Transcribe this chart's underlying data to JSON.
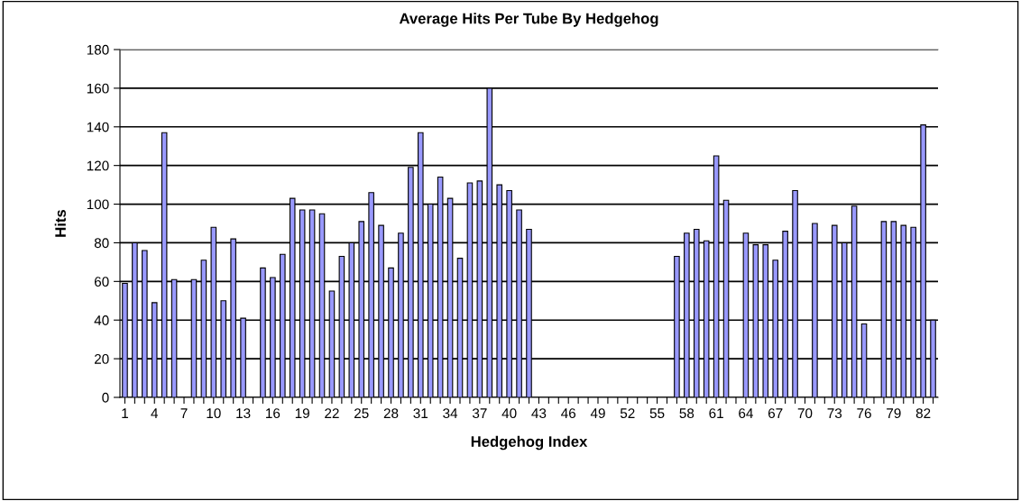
{
  "chart_data": {
    "type": "bar",
    "title": "Average Hits Per Tube By Hedgehog",
    "xlabel": "Hedgehog Index",
    "ylabel": "Hits",
    "categories": [
      "1",
      null,
      null,
      "4",
      null,
      null,
      "7",
      null,
      null,
      "10",
      null,
      null,
      "13",
      null,
      null,
      "16",
      null,
      null,
      "19",
      null,
      null,
      "22",
      null,
      null,
      "25",
      null,
      null,
      "28",
      null,
      null,
      "31",
      null,
      null,
      "34",
      null,
      null,
      "37",
      null,
      null,
      "40",
      null,
      null,
      "43",
      null,
      null,
      "46",
      null,
      null,
      "49",
      null,
      null,
      "52",
      null,
      null,
      "55",
      null,
      null,
      "58",
      null,
      null,
      "61",
      null,
      null,
      "64",
      null,
      null,
      "67",
      null,
      null,
      "70",
      null,
      null,
      "73",
      null,
      null,
      "76",
      null,
      null,
      "79",
      null,
      null,
      "82",
      null
    ],
    "series": [
      {
        "color": "#9999ff",
        "values": [
          59,
          80,
          76,
          49,
          137,
          61,
          null,
          61,
          71,
          88,
          50,
          82,
          41,
          null,
          67,
          62,
          74,
          103,
          97,
          97,
          95,
          55,
          73,
          80,
          91,
          106,
          89,
          67,
          85,
          119,
          137,
          100,
          114,
          103,
          72,
          111,
          112,
          160,
          110,
          107,
          97,
          87,
          null,
          null,
          null,
          null,
          null,
          null,
          null,
          null,
          null,
          null,
          null,
          null,
          null,
          null,
          73,
          85,
          87,
          81,
          125,
          102,
          null,
          85,
          79,
          79,
          71,
          86,
          107,
          null,
          90,
          null,
          89,
          80,
          99,
          38,
          null,
          91,
          91,
          89,
          88,
          141,
          40
        ]
      }
    ],
    "ylim": [
      0,
      180
    ],
    "yticks": [
      0,
      20,
      40,
      60,
      80,
      100,
      120,
      140,
      160,
      180
    ],
    "grid": "y"
  }
}
